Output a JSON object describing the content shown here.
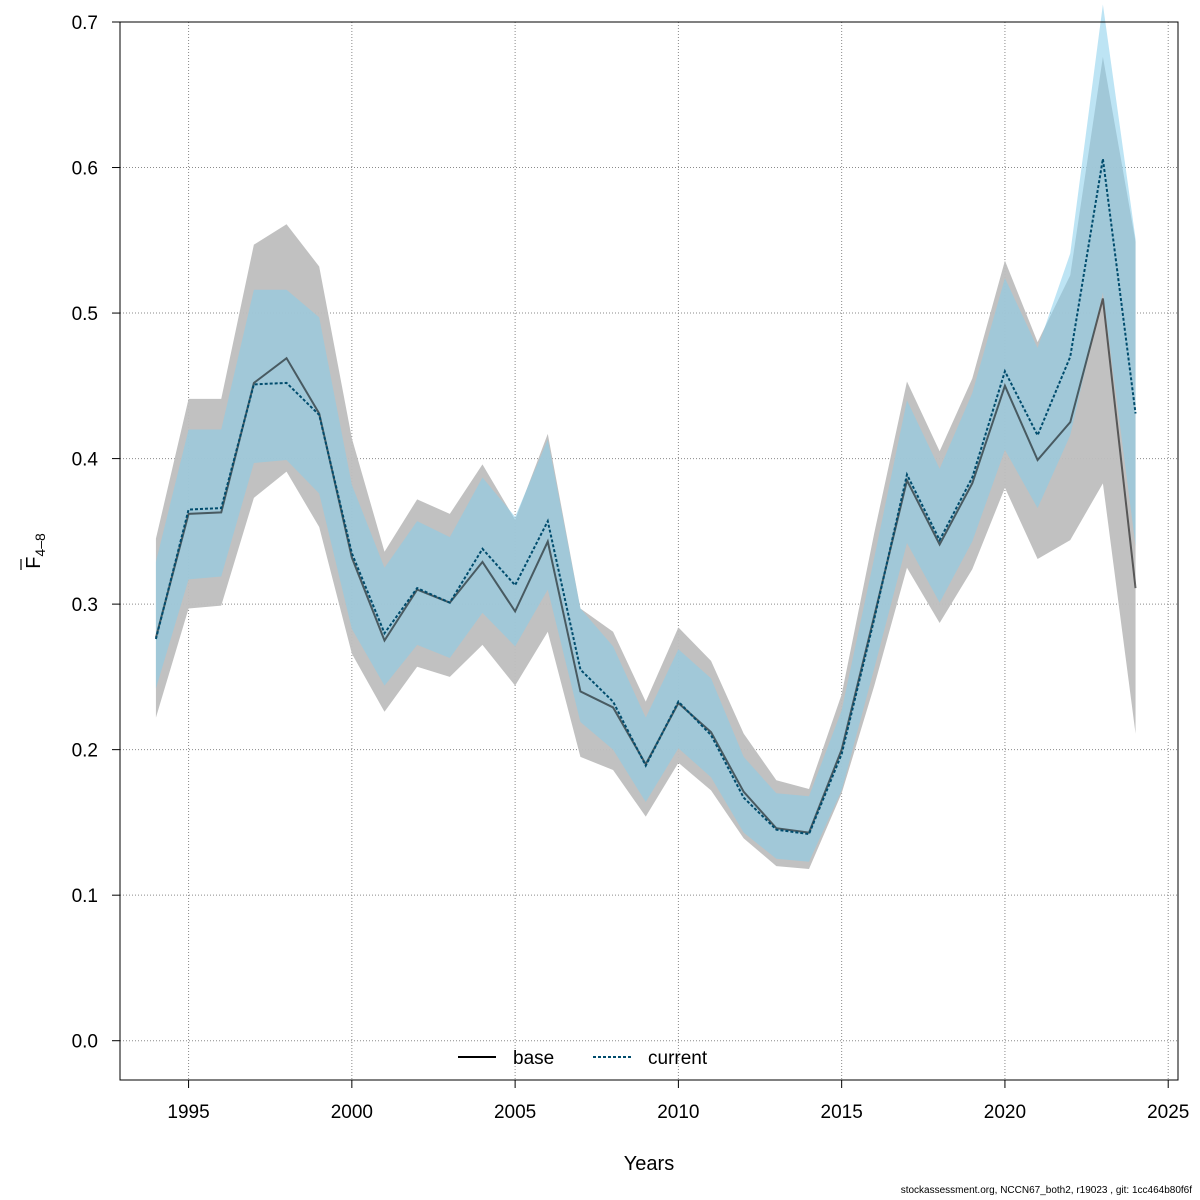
{
  "chart_data": {
    "type": "line",
    "title": "",
    "xlabel": "Years",
    "ylabel_main": "F",
    "ylabel_sub": "4–8",
    "xlim": [
      1992.9,
      2025.3
    ],
    "ylim": [
      -0.027,
      0.7
    ],
    "x_ticks": [
      1995,
      2000,
      2005,
      2010,
      2015,
      2020,
      2025
    ],
    "y_ticks": [
      0.0,
      0.1,
      0.2,
      0.3,
      0.4,
      0.5,
      0.6,
      0.7
    ],
    "y_tick_labels": [
      "0.0",
      "0.1",
      "0.2",
      "0.3",
      "0.4",
      "0.5",
      "0.6",
      "0.7"
    ],
    "grid": true,
    "legend_position": "bottom-center",
    "x": [
      1994,
      1995,
      1996,
      1997,
      1998,
      1999,
      2000,
      2001,
      2002,
      2003,
      2004,
      2005,
      2006,
      2007,
      2008,
      2009,
      2010,
      2011,
      2012,
      2013,
      2014,
      2015,
      2016,
      2017,
      2018,
      2019,
      2020,
      2021,
      2022,
      2023,
      2024
    ],
    "series": [
      {
        "name": "base",
        "color": "#000000",
        "band_color": "#bebebe",
        "line_style": "solid",
        "values": [
          0.277,
          0.362,
          0.363,
          0.452,
          0.469,
          0.431,
          0.332,
          0.275,
          0.31,
          0.301,
          0.329,
          0.295,
          0.343,
          0.24,
          0.229,
          0.19,
          0.232,
          0.212,
          0.171,
          0.146,
          0.143,
          0.2,
          0.292,
          0.385,
          0.341,
          0.383,
          0.45,
          0.399,
          0.425,
          0.51,
          0.311
        ],
        "lower": [
          0.222,
          0.297,
          0.299,
          0.373,
          0.391,
          0.353,
          0.266,
          0.226,
          0.257,
          0.25,
          0.272,
          0.244,
          0.281,
          0.195,
          0.186,
          0.154,
          0.191,
          0.172,
          0.139,
          0.12,
          0.118,
          0.17,
          0.244,
          0.325,
          0.287,
          0.324,
          0.38,
          0.331,
          0.344,
          0.383,
          0.211
        ],
        "upper": [
          0.345,
          0.441,
          0.441,
          0.547,
          0.561,
          0.532,
          0.414,
          0.336,
          0.372,
          0.362,
          0.396,
          0.358,
          0.417,
          0.297,
          0.281,
          0.233,
          0.284,
          0.261,
          0.211,
          0.179,
          0.173,
          0.238,
          0.349,
          0.453,
          0.405,
          0.455,
          0.536,
          0.48,
          0.526,
          0.676,
          0.549
        ]
      },
      {
        "name": "current",
        "color": "#004c6d",
        "band_color": "#87ceeb",
        "line_style": "dotted",
        "values": [
          0.276,
          0.365,
          0.366,
          0.451,
          0.452,
          0.43,
          0.335,
          0.28,
          0.311,
          0.301,
          0.338,
          0.313,
          0.357,
          0.255,
          0.233,
          0.189,
          0.233,
          0.21,
          0.167,
          0.145,
          0.142,
          0.197,
          0.29,
          0.389,
          0.344,
          0.387,
          0.46,
          0.416,
          0.47,
          0.606,
          0.431
        ],
        "lower": [
          0.242,
          0.317,
          0.319,
          0.397,
          0.399,
          0.376,
          0.283,
          0.244,
          0.272,
          0.263,
          0.294,
          0.271,
          0.31,
          0.219,
          0.2,
          0.164,
          0.201,
          0.181,
          0.143,
          0.125,
          0.123,
          0.172,
          0.256,
          0.342,
          0.301,
          0.343,
          0.406,
          0.366,
          0.416,
          0.514,
          0.34
        ],
        "upper": [
          0.329,
          0.42,
          0.42,
          0.516,
          0.516,
          0.497,
          0.382,
          0.325,
          0.357,
          0.346,
          0.387,
          0.36,
          0.413,
          0.297,
          0.271,
          0.222,
          0.269,
          0.249,
          0.195,
          0.17,
          0.168,
          0.227,
          0.332,
          0.44,
          0.393,
          0.445,
          0.524,
          0.476,
          0.541,
          0.712,
          0.551
        ]
      }
    ]
  },
  "footer": "stockassessment.org, NCCN67_both2, r19023 , git: 1cc464b80f6f"
}
